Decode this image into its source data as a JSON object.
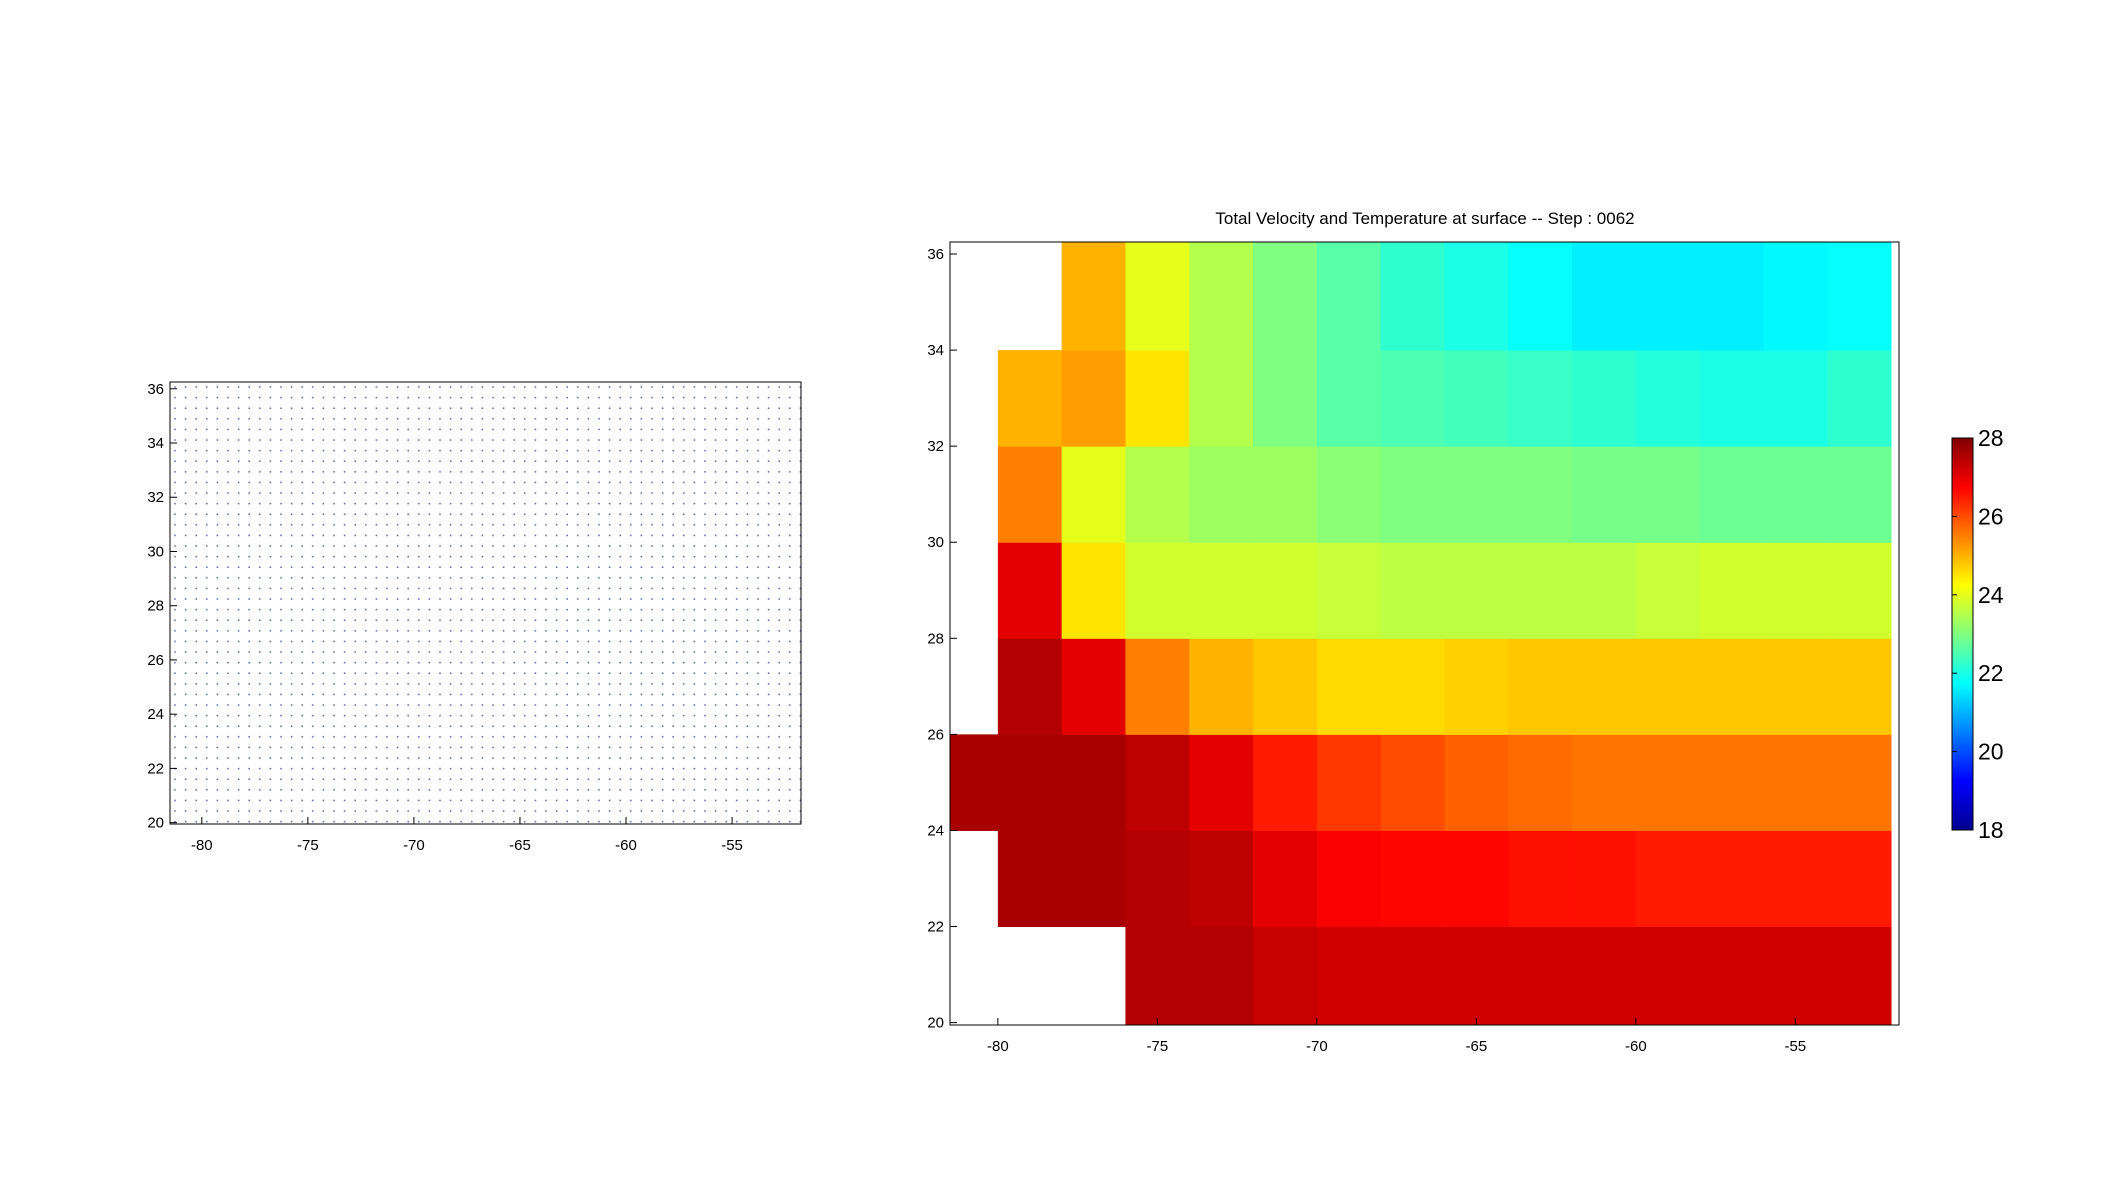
{
  "chart_data": [
    {
      "type": "quiver",
      "xlim": [
        -81.5,
        -51.75
      ],
      "ylim": [
        19.95,
        36.25
      ],
      "xticks": [
        -80,
        -75,
        -70,
        -65,
        -60,
        -55
      ],
      "yticks": [
        20,
        22,
        24,
        26,
        28,
        30,
        32,
        34,
        36
      ]
    },
    {
      "type": "heatmap",
      "title": "Total Velocity and Temperature at surface -- Step : 0062",
      "xlim": [
        -81.5,
        -51.75
      ],
      "ylim": [
        19.95,
        36.25
      ],
      "xticks": [
        -80,
        -75,
        -70,
        -65,
        -60,
        -55
      ],
      "yticks": [
        20,
        22,
        24,
        26,
        28,
        30,
        32,
        34,
        36
      ],
      "x": [
        -81,
        -79,
        -77,
        -75,
        -73,
        -71,
        -69,
        -67,
        -65,
        -63,
        -61,
        -59,
        -57,
        -55,
        -53
      ],
      "y": [
        21,
        23,
        25,
        27,
        29,
        31,
        33,
        35
      ],
      "values": [
        [
          null,
          null,
          null,
          27.5,
          27.5,
          27.3,
          27.2,
          27.2,
          27.2,
          27.2,
          27.2,
          27.2,
          27.2,
          27.2,
          27.2
        ],
        [
          null,
          27.6,
          27.6,
          27.5,
          27.4,
          27,
          26.8,
          26.7,
          26.7,
          26.6,
          26.6,
          26.5,
          26.5,
          26.5,
          26.5
        ],
        [
          27.6,
          27.6,
          27.6,
          27.4,
          27,
          26.5,
          26.2,
          26,
          25.8,
          25.7,
          25.6,
          25.6,
          25.6,
          25.6,
          25.6
        ],
        [
          null,
          27.5,
          27,
          25.5,
          25,
          24.8,
          24.6,
          24.6,
          24.7,
          24.8,
          24.8,
          24.8,
          24.8,
          24.8,
          24.8
        ],
        [
          null,
          27,
          24.5,
          23.8,
          23.8,
          23.8,
          23.7,
          23.6,
          23.6,
          23.6,
          23.6,
          23.7,
          23.8,
          23.8,
          23.8
        ],
        [
          null,
          25.5,
          24,
          23.5,
          23.3,
          23.3,
          23.1,
          23,
          23,
          23,
          22.9,
          22.9,
          22.8,
          22.8,
          22.8
        ],
        [
          null,
          25,
          25.2,
          24.5,
          23.5,
          23,
          22.6,
          22.5,
          22.4,
          22.3,
          22.2,
          22.1,
          22,
          22,
          22.2
        ],
        [
          null,
          null,
          25,
          24,
          23.5,
          23,
          22.6,
          22.2,
          22,
          21.8,
          21.6,
          21.6,
          21.6,
          21.7,
          21.8
        ]
      ],
      "colormap": "jet",
      "colorbar": {
        "lim": [
          18,
          28
        ],
        "ticks": [
          18,
          20,
          22,
          24,
          26,
          28
        ]
      }
    }
  ]
}
